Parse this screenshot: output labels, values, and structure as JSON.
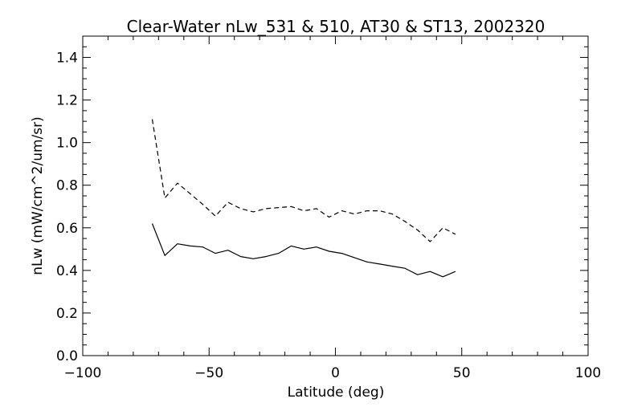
{
  "chart_data": {
    "type": "line",
    "title": "Clear-Water nLw_531 & 510, AT30 & ST13, 2002320",
    "xlabel": "Latitude (deg)",
    "ylabel": "nLw (mW/cm^2/um/sr)",
    "xlim": [
      -100,
      100
    ],
    "ylim": [
      0.0,
      1.5
    ],
    "x_ticks": [
      -100,
      -50,
      0,
      50,
      100
    ],
    "x_tick_labels": [
      "−100",
      "−50",
      "0",
      "50",
      "100"
    ],
    "y_ticks": [
      0.0,
      0.2,
      0.4,
      0.6,
      0.8,
      1.0,
      1.2,
      1.4
    ],
    "y_tick_labels": [
      "0.0",
      "0.2",
      "0.4",
      "0.6",
      "0.8",
      "1.0",
      "1.2",
      "1.4"
    ],
    "grid": false,
    "legend": "none",
    "series": [
      {
        "style": "solid",
        "color": "#000000",
        "x": [
          -72.5,
          -67.5,
          -62.5,
          -57.5,
          -52.5,
          -47.5,
          -42.5,
          -37.5,
          -32.5,
          -27.5,
          -22.5,
          -17.5,
          -12.5,
          -7.5,
          -2.5,
          2.5,
          7.5,
          12.5,
          17.5,
          22.5,
          27.5,
          32.5,
          37.5,
          42.5,
          47.5
        ],
        "y": [
          0.62,
          0.47,
          0.525,
          0.515,
          0.51,
          0.48,
          0.495,
          0.465,
          0.455,
          0.465,
          0.48,
          0.515,
          0.5,
          0.51,
          0.49,
          0.48,
          0.46,
          0.44,
          0.43,
          0.42,
          0.41,
          0.38,
          0.395,
          0.37,
          0.395
        ]
      },
      {
        "style": "dashed",
        "color": "#000000",
        "x": [
          -72.5,
          -67.5,
          -62.5,
          -57.5,
          -52.5,
          -47.5,
          -42.5,
          -37.5,
          -32.5,
          -27.5,
          -22.5,
          -17.5,
          -12.5,
          -7.5,
          -2.5,
          2.5,
          7.5,
          12.5,
          17.5,
          22.5,
          27.5,
          32.5,
          37.5,
          42.5,
          47.5
        ],
        "y": [
          1.11,
          0.74,
          0.81,
          0.76,
          0.71,
          0.655,
          0.72,
          0.69,
          0.675,
          0.69,
          0.695,
          0.7,
          0.68,
          0.69,
          0.65,
          0.68,
          0.665,
          0.68,
          0.68,
          0.665,
          0.63,
          0.59,
          0.535,
          0.6,
          0.57
        ]
      }
    ]
  }
}
